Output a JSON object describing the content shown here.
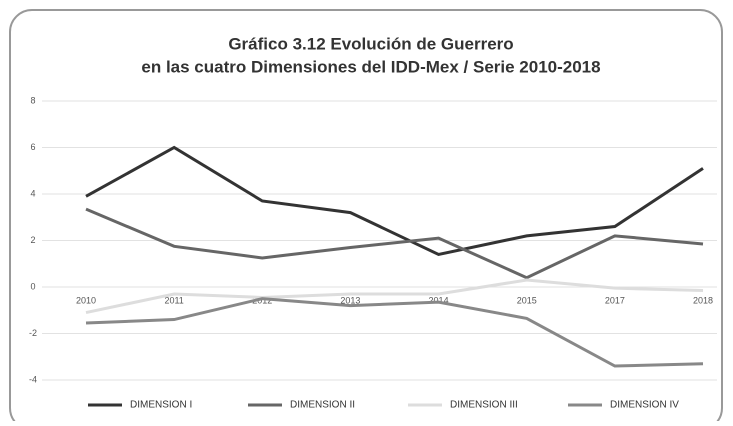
{
  "chart_data": {
    "type": "line",
    "title": [
      "Gráfico 3.12 Evolución de Guerrero",
      "en las cuatro Dimensiones del IDD-Mex / Serie 2010-2018"
    ],
    "categories": [
      "2010",
      "2011",
      "2012",
      "2013",
      "2014",
      "2015",
      "2017",
      "2018"
    ],
    "series": [
      {
        "name": "DIMENSION I",
        "color": "#333333",
        "values": [
          3.9,
          6.0,
          3.7,
          3.2,
          1.4,
          2.2,
          2.6,
          5.1
        ]
      },
      {
        "name": "DIMENSION II",
        "color": "#666666",
        "values": [
          3.35,
          1.75,
          1.25,
          1.7,
          2.1,
          0.4,
          2.2,
          1.85
        ]
      },
      {
        "name": "DIMENSION III",
        "color": "#dddddd",
        "values": [
          -1.1,
          -0.3,
          -0.45,
          -0.3,
          -0.3,
          0.3,
          -0.05,
          -0.15
        ]
      },
      {
        "name": "DIMENSION IV",
        "color": "#888888",
        "values": [
          -1.55,
          -1.4,
          -0.5,
          -0.8,
          -0.65,
          -1.35,
          -3.4,
          -3.3
        ]
      }
    ],
    "ylim": [
      -4,
      8
    ],
    "yticks": [
      -4,
      -2,
      0,
      2,
      4,
      6,
      8
    ],
    "grid": true,
    "legend": "bottom"
  }
}
